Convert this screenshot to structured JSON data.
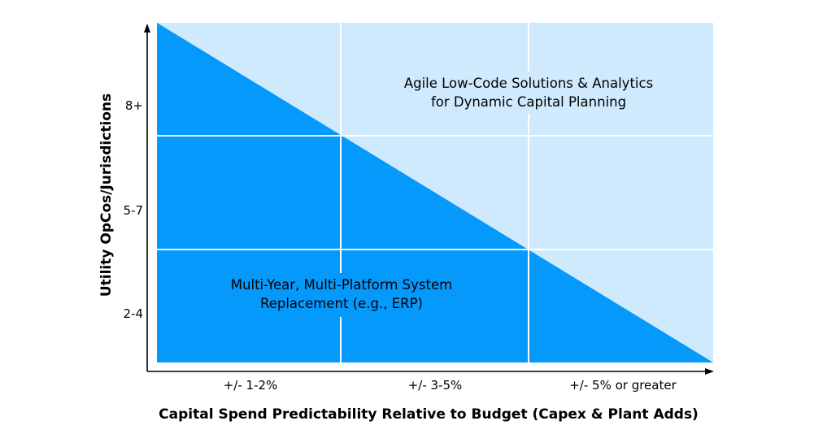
{
  "colors": {
    "light_region": "#cfeafd",
    "dark_region": "#0599fc",
    "grid": "#ffffff",
    "axis": "#000000"
  },
  "y_axis": {
    "title": "Utility OpCos/Jurisdictions",
    "ticks": [
      "8+",
      "5-7",
      "2-4"
    ]
  },
  "x_axis": {
    "title": "Capital Spend Predictability Relative to Budget (Capex & Plant Adds)",
    "ticks": [
      "+/- 1-2%",
      "+/- 3-5%",
      "+/- 5% or greater"
    ]
  },
  "regions": {
    "upper": {
      "line1": "Agile Low-Code Solutions & Analytics",
      "line2": "for Dynamic Capital Planning"
    },
    "lower": {
      "line1": "Multi-Year, Multi-Platform System",
      "line2": "Replacement (e.g., ERP)"
    }
  }
}
